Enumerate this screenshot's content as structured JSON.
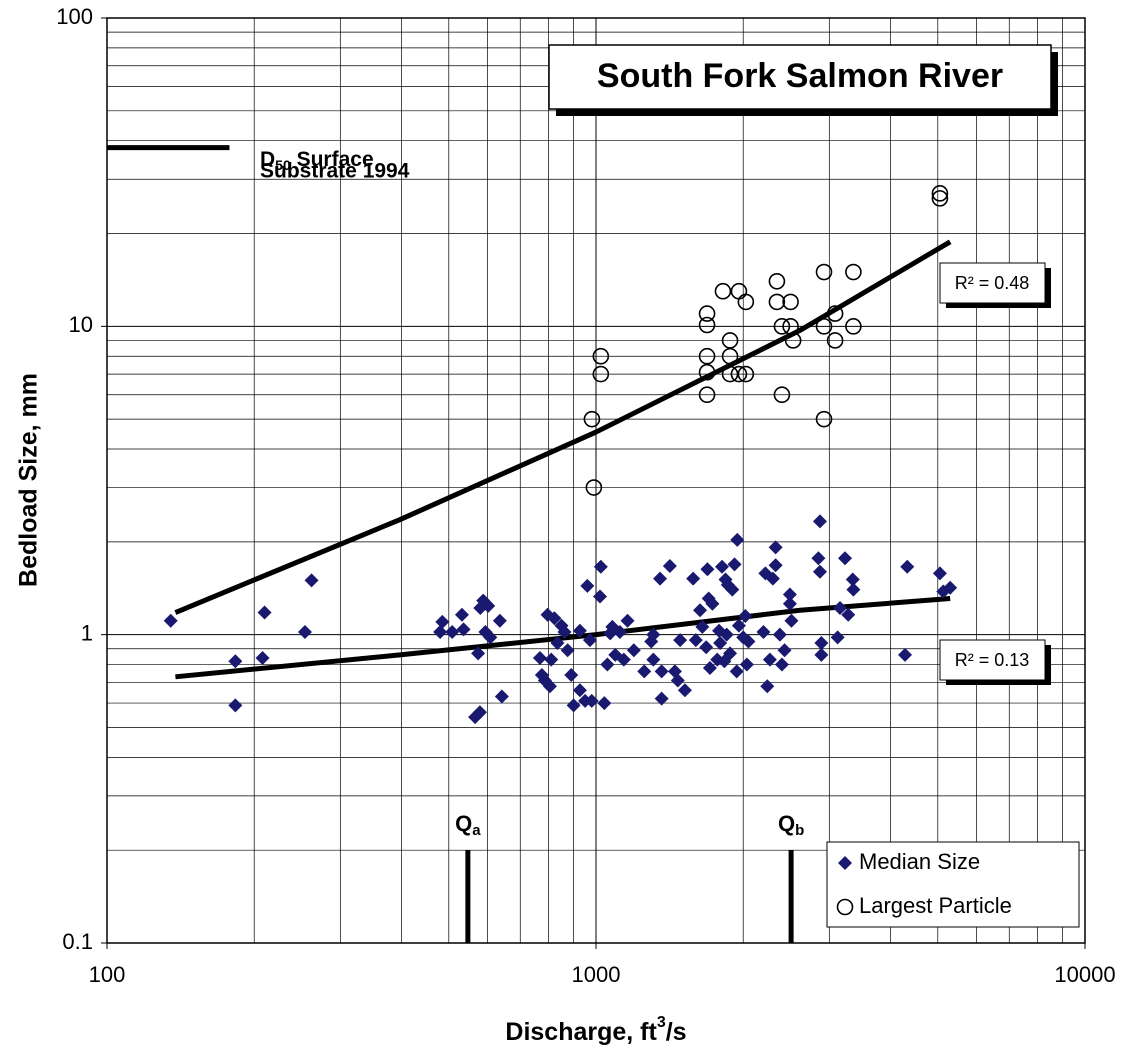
{
  "chart_data": {
    "type": "scatter",
    "title": "South Fork Salmon River",
    "x_label": {
      "main": "Discharge, ft",
      "sup": "3",
      "rest": "/s"
    },
    "y_label": "Bedload Size, mm",
    "log_x": true,
    "log_y": true,
    "grid": true,
    "xlim": [
      100,
      10000
    ],
    "xticks": [
      100,
      1000,
      10000
    ],
    "x_minor_ticks": [
      200,
      300,
      400,
      500,
      600,
      700,
      800,
      900,
      2000,
      3000,
      4000,
      5000,
      6000,
      7000,
      8000,
      9000
    ],
    "ylim": [
      0.1,
      100
    ],
    "yticks": [
      0.1,
      1,
      10,
      100
    ],
    "y_minor_ticks": [
      0.2,
      0.3,
      0.4,
      0.5,
      0.6,
      0.7,
      0.8,
      0.9,
      2,
      3,
      4,
      5,
      6,
      7,
      8,
      9,
      20,
      30,
      40,
      50,
      60,
      70,
      80,
      90
    ],
    "legend": "lower right",
    "series": [
      {
        "name": "Median Size",
        "marker": "diamond",
        "color": "#191970",
        "x": [
          135,
          183,
          183,
          208,
          210,
          254,
          262,
          480,
          485,
          508,
          532,
          536,
          566,
          579,
          574,
          580,
          588,
          594,
          602,
          608,
          636,
          642,
          768,
          775,
          786,
          796,
          805,
          810,
          822,
          834,
          850,
          862,
          875,
          890,
          900,
          927,
          927,
          950,
          960,
          972,
          980,
          1019,
          1023,
          1040,
          1055,
          1069,
          1080,
          1095,
          1119,
          1140,
          1160,
          1195,
          1255,
          1297,
          1310,
          1310,
          1352,
          1362,
          1362,
          1416,
          1450,
          1470,
          1486,
          1520,
          1580,
          1600,
          1632,
          1650,
          1680,
          1690,
          1700,
          1710,
          1730,
          1770,
          1785,
          1794,
          1810,
          1830,
          1840,
          1850,
          1860,
          1880,
          1900,
          1920,
          1945,
          1940,
          1960,
          2000,
          2020,
          2035,
          2050,
          2200,
          2220,
          2240,
          2268,
          2300,
          2330,
          2330,
          2377,
          2400,
          2430,
          2492,
          2492,
          2510,
          2871,
          2850,
          2871,
          2890,
          2890,
          3120,
          3155,
          3230,
          3280,
          3350,
          3360,
          4330,
          4285,
          5050,
          5130,
          5300
        ],
        "values": [
          1.11,
          0.82,
          0.59,
          0.84,
          1.18,
          1.02,
          1.5,
          1.02,
          1.1,
          1.02,
          1.16,
          1.04,
          0.54,
          0.56,
          0.87,
          1.22,
          1.29,
          1.02,
          1.24,
          0.98,
          1.11,
          0.63,
          0.84,
          0.74,
          0.71,
          1.16,
          0.68,
          0.83,
          1.13,
          0.94,
          1.07,
          1.02,
          0.89,
          0.74,
          0.59,
          1.03,
          0.66,
          0.61,
          1.44,
          0.96,
          0.61,
          1.33,
          1.66,
          0.6,
          0.8,
          1.01,
          1.06,
          0.86,
          1.02,
          0.83,
          1.11,
          0.89,
          0.76,
          0.95,
          1.0,
          0.83,
          1.52,
          0.62,
          0.76,
          1.67,
          0.76,
          0.71,
          0.96,
          0.66,
          1.52,
          0.96,
          1.2,
          1.06,
          0.91,
          1.63,
          1.31,
          0.78,
          1.26,
          0.83,
          1.03,
          0.94,
          1.66,
          0.82,
          1.51,
          1.0,
          1.45,
          0.87,
          1.4,
          1.69,
          2.03,
          0.76,
          1.07,
          0.98,
          1.15,
          0.8,
          0.95,
          1.02,
          1.58,
          0.68,
          0.83,
          1.52,
          1.92,
          1.68,
          1.0,
          0.8,
          0.89,
          1.35,
          1.26,
          1.11,
          2.33,
          1.77,
          1.6,
          0.94,
          0.86,
          0.98,
          1.22,
          1.77,
          1.16,
          1.51,
          1.4,
          1.66,
          0.86,
          1.58,
          1.38,
          1.42
        ]
      },
      {
        "name": "Largest Particle",
        "marker": "circle",
        "color": "#000000",
        "x": [
          981,
          990,
          1023,
          1023,
          1687,
          1687,
          1687,
          1687,
          1687,
          1818,
          1880,
          1880,
          1880,
          1960,
          1960,
          2025,
          2025,
          2344,
          2344,
          2400,
          2400,
          2500,
          2500,
          2530,
          2926,
          2926,
          2926,
          3083,
          3083,
          3360,
          3360,
          5050,
          5050
        ],
        "values": [
          5,
          3,
          8,
          7,
          11,
          10.1,
          8,
          7.1,
          6,
          13,
          9,
          8,
          7,
          13,
          7,
          12,
          7,
          14,
          12,
          10,
          6,
          12,
          10,
          9,
          15,
          10,
          5,
          11,
          9,
          15,
          10,
          27,
          26
        ]
      }
    ],
    "trendlines": [
      {
        "x": [
          138,
          397,
          1000,
          2612,
          5300
        ],
        "values": [
          1.18,
          2.36,
          4.54,
          9.7,
          18.8
        ],
        "color": "#000000",
        "label": "R² = 0.48"
      },
      {
        "x": [
          138,
          397,
          1000,
          2612,
          5300
        ],
        "values": [
          0.73,
          0.86,
          1.0,
          1.2,
          1.31
        ],
        "color": "#000000",
        "label": "R² = 0.13"
      }
    ],
    "reference_line": {
      "x": [
        100,
        178
      ],
      "value": 38,
      "label": {
        "main": "D",
        "sub": "50",
        "rest": " Surface"
      },
      "label2": "Substrate 1994"
    },
    "markers": [
      {
        "label": {
          "main": "Q",
          "sub": "a"
        },
        "x": 547,
        "y": [
          0.1,
          0.2
        ]
      },
      {
        "label": {
          "main": "Q",
          "sub": "b"
        },
        "x": 2506,
        "y": [
          0.1,
          0.2
        ]
      }
    ]
  }
}
